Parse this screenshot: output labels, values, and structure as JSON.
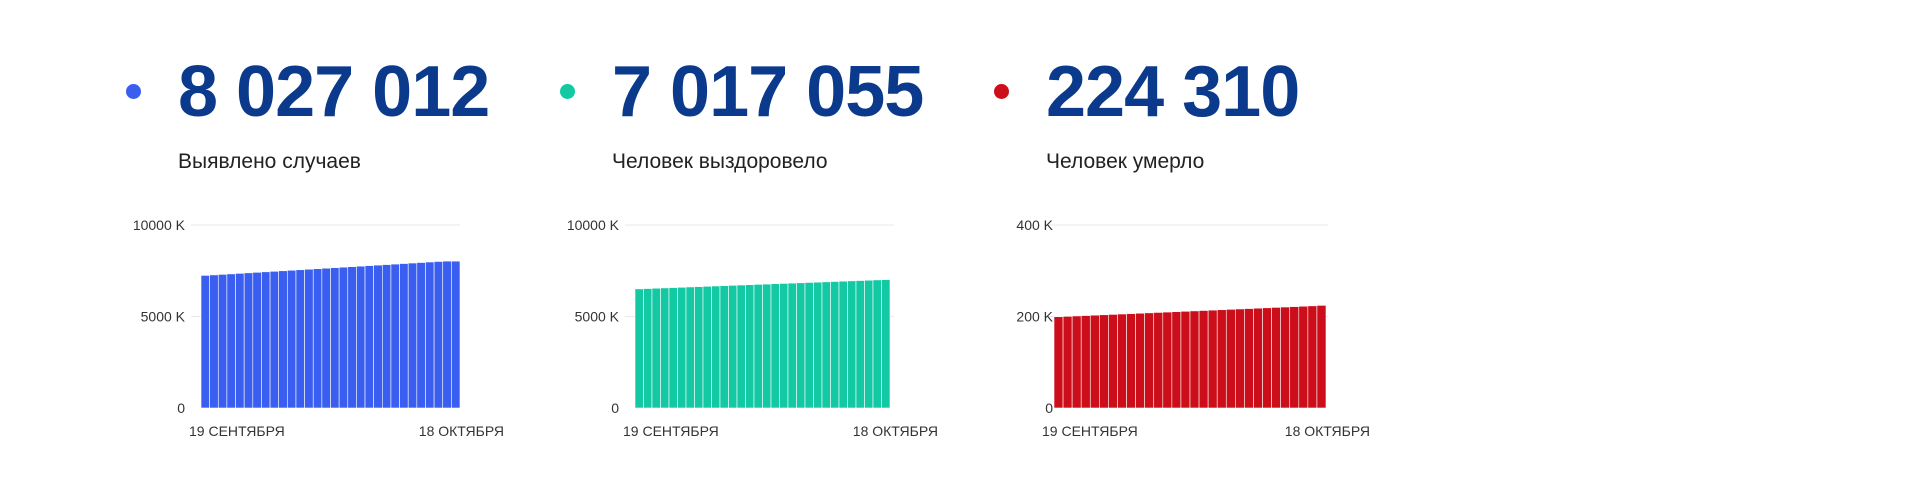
{
  "stats": [
    {
      "value": "8 027 012",
      "label": "Выявлено случаев",
      "color": "#3a5ff0"
    },
    {
      "value": "7 017 055",
      "label": "Человек выздоровело",
      "color": "#12c9a3"
    },
    {
      "value": "224 310",
      "label": "Человек умерло",
      "color": "#cc0e1b"
    }
  ],
  "chart_data": [
    {
      "type": "bar",
      "x_start_label": "19 СЕНТЯБРЯ",
      "x_end_label": "18 ОКТЯБРЯ",
      "y_ticks": [
        "0",
        "5000 K",
        "10000 K"
      ],
      "ylim": [
        0,
        10000000
      ],
      "color": "#3a5ff0",
      "values": [
        7245000,
        7273000,
        7301000,
        7329000,
        7357000,
        7386000,
        7414000,
        7442000,
        7470000,
        7499000,
        7527000,
        7555000,
        7583000,
        7611000,
        7640000,
        7668000,
        7696000,
        7724000,
        7752000,
        7781000,
        7809000,
        7837000,
        7865000,
        7894000,
        7922000,
        7950000,
        7978000,
        8006000,
        8027012,
        8027012
      ]
    },
    {
      "type": "bar",
      "x_start_label": "19 СЕНТЯБРЯ",
      "x_end_label": "18 ОКТЯБРЯ",
      "y_ticks": [
        "0",
        "5000 K",
        "10000 K"
      ],
      "ylim": [
        0,
        10000000
      ],
      "color": "#12c9a3",
      "values": [
        6510000,
        6527000,
        6545000,
        6562000,
        6580000,
        6597000,
        6615000,
        6632000,
        6650000,
        6667000,
        6685000,
        6702000,
        6720000,
        6737000,
        6755000,
        6772000,
        6790000,
        6807000,
        6825000,
        6842000,
        6860000,
        6877000,
        6895000,
        6912000,
        6930000,
        6947000,
        6965000,
        6982000,
        7000000,
        7017055
      ]
    },
    {
      "type": "bar",
      "x_start_label": "19 СЕНТЯБРЯ",
      "x_end_label": "18 ОКТЯБРЯ",
      "y_ticks": [
        "0",
        "200 K",
        "400 K"
      ],
      "ylim": [
        0,
        400000
      ],
      "color": "#cc0e1b",
      "values": [
        199500,
        200350,
        201200,
        202050,
        202900,
        203750,
        204600,
        205450,
        206300,
        207150,
        208000,
        208850,
        209700,
        210550,
        211400,
        212250,
        213100,
        213950,
        214800,
        215650,
        216500,
        217350,
        218200,
        219050,
        219900,
        220750,
        221600,
        222450,
        223300,
        224310
      ]
    }
  ]
}
